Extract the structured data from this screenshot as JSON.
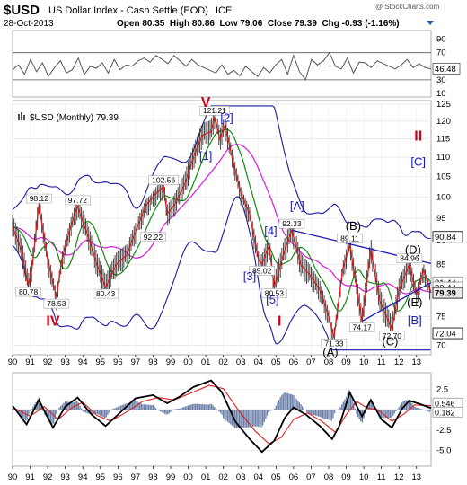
{
  "header": {
    "symbol": "$USD",
    "name": "US Dollar Index - Cash Settle (EOD)",
    "exchange": "ICE",
    "date": "28-Oct-2013",
    "ohlc_text": "Open 80.35  High 80.86  Low 79.06  Close 79.39  Chg -0.93 (-1.16%)",
    "watermark": "@ StockCharts.com"
  },
  "chart_data": [
    {
      "type": "line",
      "panel": "rsi",
      "ylim": [
        10,
        100
      ],
      "y_ticks": [
        90,
        70,
        50,
        30,
        10
      ],
      "overbought": 70,
      "oversold": 30,
      "last_value": 46.48,
      "x_start": 1990,
      "x_end": 2013.83,
      "values": [
        45,
        52,
        38,
        60,
        42,
        55,
        35,
        48,
        58,
        40,
        45,
        62,
        38,
        50,
        47,
        55,
        40,
        60,
        45,
        52,
        50,
        58,
        62,
        56,
        66,
        60,
        54,
        66,
        58,
        50,
        60,
        52,
        48,
        44,
        40,
        52,
        38,
        44,
        36,
        50,
        42,
        35,
        48,
        40,
        52,
        60,
        38,
        66,
        42,
        30,
        60,
        52,
        58,
        70,
        50,
        46,
        62,
        40,
        56,
        55,
        48,
        58,
        54,
        50,
        46,
        52,
        60,
        48,
        54,
        48,
        46
      ]
    },
    {
      "type": "line",
      "panel": "price",
      "title": "$USD (Monthly) 79.39",
      "scale": "log",
      "ylim": [
        69,
        125
      ],
      "y_ticks": [
        125,
        120,
        115,
        110,
        105,
        100,
        95,
        90,
        85,
        80,
        75,
        70
      ],
      "x_start": 1990,
      "x_end": 2013.83,
      "x_tick_labels": [
        "90",
        "91",
        "92",
        "93",
        "94",
        "95",
        "96",
        "97",
        "98",
        "99",
        "00",
        "01",
        "02",
        "03",
        "04",
        "05",
        "06",
        "07",
        "08",
        "09",
        "10",
        "11",
        "12",
        "13"
      ],
      "price_points": [
        [
          1990,
          93
        ],
        [
          1990.5,
          88
        ],
        [
          1990.9,
          80.78
        ],
        [
          1991.1,
          84
        ],
        [
          1991.5,
          98.12
        ],
        [
          1992.0,
          86
        ],
        [
          1992.5,
          78.53
        ],
        [
          1992.8,
          86
        ],
        [
          1993.3,
          93
        ],
        [
          1993.7,
          97.72
        ],
        [
          1994.3,
          91
        ],
        [
          1994.8,
          85
        ],
        [
          1995.3,
          80.43
        ],
        [
          1995.9,
          85
        ],
        [
          1996.5,
          87
        ],
        [
          1997.0,
          92
        ],
        [
          1997.6,
          98
        ],
        [
          1998.2,
          101
        ],
        [
          1998.6,
          102.56
        ],
        [
          1998.8,
          96
        ],
        [
          1999.2,
          98
        ],
        [
          1999.8,
          103
        ],
        [
          2000.3,
          110
        ],
        [
          2000.8,
          116
        ],
        [
          2001.3,
          117
        ],
        [
          2001.5,
          121.21
        ],
        [
          2001.8,
          115
        ],
        [
          2002.1,
          119
        ],
        [
          2002.5,
          110
        ],
        [
          2003.0,
          101
        ],
        [
          2003.5,
          96
        ],
        [
          2004.0,
          86
        ],
        [
          2004.2,
          85.02
        ],
        [
          2004.6,
          89
        ],
        [
          2004.9,
          80.53
        ],
        [
          2005.5,
          88
        ],
        [
          2005.9,
          92.33
        ],
        [
          2006.4,
          85
        ],
        [
          2006.9,
          83
        ],
        [
          2007.5,
          80
        ],
        [
          2008.0,
          75
        ],
        [
          2008.3,
          71.33
        ],
        [
          2008.8,
          84
        ],
        [
          2009.2,
          89.11
        ],
        [
          2009.9,
          74.17
        ],
        [
          2010.4,
          88
        ],
        [
          2010.9,
          78
        ],
        [
          2011.3,
          75
        ],
        [
          2011.6,
          72.7
        ],
        [
          2012.0,
          80
        ],
        [
          2012.6,
          84.96
        ],
        [
          2013.0,
          79
        ],
        [
          2013.4,
          84
        ],
        [
          2013.83,
          79.39
        ]
      ],
      "price_labels": [
        {
          "text": "98.12",
          "x": 1991.5,
          "y": 98.12,
          "pos": "above"
        },
        {
          "text": "80.78",
          "x": 1990.9,
          "y": 80.78,
          "pos": "below"
        },
        {
          "text": "97.72",
          "x": 1993.7,
          "y": 97.72,
          "pos": "above"
        },
        {
          "text": "78.53",
          "x": 1992.5,
          "y": 78.53,
          "pos": "below"
        },
        {
          "text": "80.43",
          "x": 1995.3,
          "y": 80.43,
          "pos": "below"
        },
        {
          "text": "92.22",
          "x": 1998.0,
          "y": 92.22,
          "pos": "below"
        },
        {
          "text": "102.56",
          "x": 1998.6,
          "y": 102.56,
          "pos": "above"
        },
        {
          "text": "121.21",
          "x": 2001.5,
          "y": 121.21,
          "pos": "above"
        },
        {
          "text": "85.02",
          "x": 2004.2,
          "y": 85.02,
          "pos": "below"
        },
        {
          "text": "80.53",
          "x": 2004.9,
          "y": 80.53,
          "pos": "below"
        },
        {
          "text": "92.33",
          "x": 2005.9,
          "y": 92.33,
          "pos": "above"
        },
        {
          "text": "89.11",
          "x": 2009.2,
          "y": 89.11,
          "pos": "above"
        },
        {
          "text": "71.33",
          "x": 2008.3,
          "y": 71.33,
          "pos": "below"
        },
        {
          "text": "74.17",
          "x": 2009.9,
          "y": 74.17,
          "pos": "below"
        },
        {
          "text": "72.70",
          "x": 2011.6,
          "y": 72.7,
          "pos": "below"
        },
        {
          "text": "84.96",
          "x": 2012.6,
          "y": 84.96,
          "pos": "above"
        }
      ],
      "wave_labels": [
        {
          "text": "V",
          "x": 2001.0,
          "y": 124.2,
          "color": "#d0021b"
        },
        {
          "text": "[2]",
          "x": 2002.2,
          "y": 119.8,
          "color": "#1a1ab8"
        },
        {
          "text": "[1]",
          "x": 2001.0,
          "y": 109.3,
          "color": "#1a1ab8"
        },
        {
          "text": "[A]",
          "x": 2006.2,
          "y": 97.0,
          "color": "#1a1ab8"
        },
        {
          "text": "[4]",
          "x": 2004.7,
          "y": 91.3,
          "color": "#1a1ab8"
        },
        {
          "text": "[3]",
          "x": 2003.5,
          "y": 81.8,
          "color": "#1a1ab8"
        },
        {
          "text": "[5]",
          "x": 2004.8,
          "y": 77.4,
          "color": "#1a1ab8"
        },
        {
          "text": "I",
          "x": 2005.2,
          "y": 73.4,
          "color": "#d0021b"
        },
        {
          "text": "IV",
          "x": 1992.3,
          "y": 73.4,
          "color": "#d0021b"
        },
        {
          "text": "II",
          "x": 2013.1,
          "y": 114.5,
          "color": "#d0021b"
        },
        {
          "text": "[C]",
          "x": 2013.1,
          "y": 107.8,
          "color": "#1a1ab8"
        },
        {
          "text": "(B)",
          "x": 2009.4,
          "y": 92.4,
          "color": "#000000"
        },
        {
          "text": "(D)",
          "x": 2012.8,
          "y": 87.2,
          "color": "#000000"
        },
        {
          "text": "(E)",
          "x": 2012.9,
          "y": 76.9,
          "color": "#000000"
        },
        {
          "text": "[B]",
          "x": 2012.9,
          "y": 73.6,
          "color": "#1a1ab8"
        },
        {
          "text": "(C)",
          "x": 2011.5,
          "y": 70.0,
          "color": "#000000"
        },
        {
          "text": "(A)",
          "x": 2008.1,
          "y": 68.2,
          "color": "#000000"
        }
      ],
      "trendlines": [
        {
          "color": "#1a1ab8",
          "points": [
            [
              2005.9,
              92.33
            ],
            [
              2013.83,
              85.2
            ]
          ]
        },
        {
          "color": "#1a1ab8",
          "points": [
            [
              2009.9,
              74.17
            ],
            [
              2013.83,
              81.4
            ]
          ]
        }
      ],
      "right_labels": [
        {
          "text": "90.84",
          "y": 90.84,
          "fill": "#ffffff",
          "stroke": "#000000"
        },
        {
          "text": "81.44",
          "y": 81.44,
          "fill": "#ffffff",
          "stroke": "#888888"
        },
        {
          "text": "80.44",
          "y": 80.44,
          "fill": "#ffffff",
          "stroke": "#888888"
        },
        {
          "text": "79.39",
          "y": 79.39,
          "fill": "#e8e8e8",
          "stroke": "#000000"
        },
        {
          "text": "72.04",
          "y": 72.04,
          "fill": "#ffffff",
          "stroke": "#000000"
        }
      ],
      "colors": {
        "price": "#d42020",
        "bars": "#333333",
        "ma_short": "#108a10",
        "ma_long": "#e020e0",
        "bands": "#1a1aa0",
        "wave_blue": "#1a1ab8",
        "wave_red": "#d0021b"
      }
    },
    {
      "type": "line",
      "panel": "macd",
      "ylim": [
        -6.5,
        4.0
      ],
      "y_ticks": [
        2.5,
        0.0,
        -2.5,
        -5.0
      ],
      "right_values": [
        "0.546",
        "0.182"
      ],
      "x_start": 1990,
      "x_end": 2013.83,
      "x_tick_labels": [
        "90",
        "91",
        "92",
        "93",
        "94",
        "95",
        "96",
        "97",
        "98",
        "99",
        "00",
        "01",
        "02",
        "03",
        "04",
        "05",
        "06",
        "07",
        "08",
        "09",
        "10",
        "11",
        "12",
        "13"
      ],
      "macd_points": [
        [
          1990,
          0.5
        ],
        [
          1990.8,
          -1.8
        ],
        [
          1991.5,
          1.2
        ],
        [
          1992.3,
          -2.2
        ],
        [
          1993.0,
          0.4
        ],
        [
          1993.7,
          1.5
        ],
        [
          1994.5,
          -0.6
        ],
        [
          1995.3,
          -2.0
        ],
        [
          1996.0,
          -0.6
        ],
        [
          1997.0,
          1.4
        ],
        [
          1998.0,
          1.8
        ],
        [
          1998.8,
          0.8
        ],
        [
          1999.5,
          1.6
        ],
        [
          2000.3,
          2.8
        ],
        [
          2001.3,
          3.6
        ],
        [
          2001.9,
          2.2
        ],
        [
          2002.7,
          -1.5
        ],
        [
          2003.5,
          -3.6
        ],
        [
          2004.2,
          -5.2
        ],
        [
          2004.9,
          -3.8
        ],
        [
          2005.5,
          -1.0
        ],
        [
          2006.0,
          0.3
        ],
        [
          2006.7,
          -0.6
        ],
        [
          2007.5,
          -2.0
        ],
        [
          2008.2,
          -3.6
        ],
        [
          2008.6,
          -2.0
        ],
        [
          2009.2,
          2.1
        ],
        [
          2009.9,
          -0.8
        ],
        [
          2010.4,
          1.2
        ],
        [
          2011.0,
          -1.2
        ],
        [
          2011.6,
          -2.2
        ],
        [
          2012.2,
          0.2
        ],
        [
          2012.6,
          1.1
        ],
        [
          2013.2,
          0.7
        ],
        [
          2013.83,
          0.2
        ]
      ],
      "signal_points": [
        [
          1990,
          0.3
        ],
        [
          1991.0,
          -0.8
        ],
        [
          1991.8,
          0.4
        ],
        [
          1992.6,
          -1.2
        ],
        [
          1993.4,
          0.3
        ],
        [
          1994.0,
          0.9
        ],
        [
          1994.8,
          -0.7
        ],
        [
          1995.6,
          -1.4
        ],
        [
          1996.4,
          -0.4
        ],
        [
          1997.4,
          1.0
        ],
        [
          1998.3,
          1.5
        ],
        [
          1999.2,
          1.2
        ],
        [
          2000.2,
          2.1
        ],
        [
          2001.2,
          3.0
        ],
        [
          2002.0,
          2.6
        ],
        [
          2002.9,
          -0.2
        ],
        [
          2003.8,
          -2.6
        ],
        [
          2004.6,
          -4.2
        ],
        [
          2005.3,
          -3.4
        ],
        [
          2006.0,
          -1.2
        ],
        [
          2006.8,
          -0.4
        ],
        [
          2007.6,
          -1.4
        ],
        [
          2008.4,
          -2.8
        ],
        [
          2009.0,
          -0.6
        ],
        [
          2009.6,
          1.0
        ],
        [
          2010.2,
          0.2
        ],
        [
          2010.8,
          0.0
        ],
        [
          2011.6,
          -1.4
        ],
        [
          2012.3,
          -0.5
        ],
        [
          2012.9,
          0.6
        ],
        [
          2013.83,
          0.5
        ]
      ],
      "colors": {
        "macd": "#000000",
        "signal": "#e02020",
        "hist": "#6a7ea8"
      }
    }
  ]
}
